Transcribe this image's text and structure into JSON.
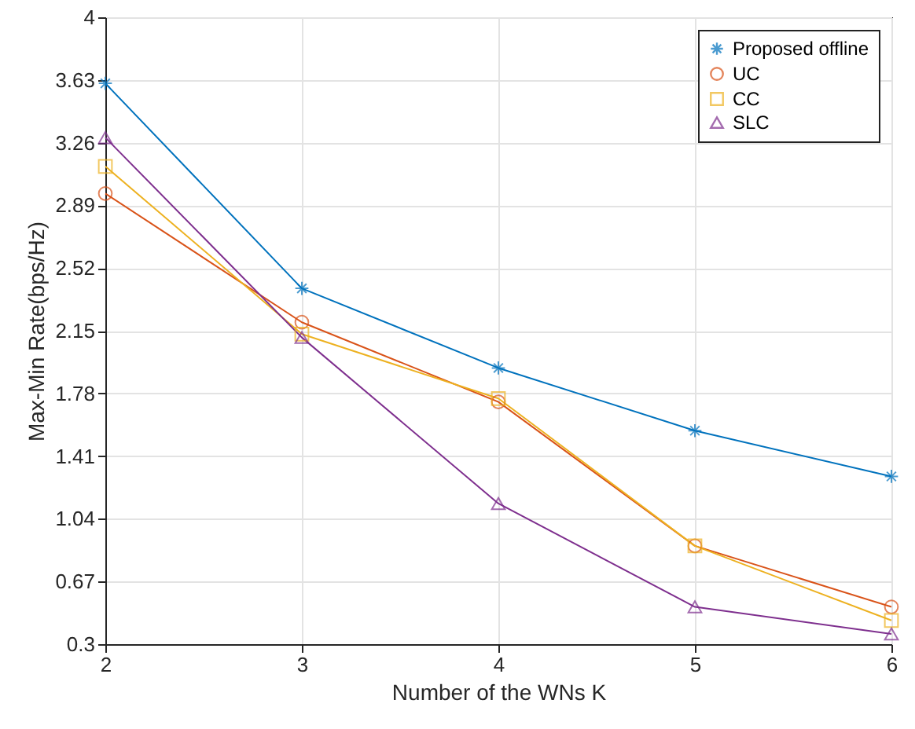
{
  "chart_data": {
    "type": "line",
    "xlabel": "Number of the WNs K",
    "ylabel": "Max-Min Rate(bps/Hz)",
    "x": [
      2,
      3,
      4,
      5,
      6
    ],
    "xlim": [
      2,
      6
    ],
    "xticks": [
      2,
      3,
      4,
      5,
      6
    ],
    "ylim": [
      0.3,
      4
    ],
    "yticks": [
      0.3,
      0.67,
      1.04,
      1.41,
      1.78,
      2.15,
      2.52,
      2.89,
      3.26,
      3.63,
      4
    ],
    "grid": true,
    "legend": "top right",
    "line_style": "solid",
    "series": [
      {
        "name": "Proposed offline",
        "color": "#0072bd",
        "marker": "cross",
        "values": [
          3.61,
          2.4,
          1.93,
          1.56,
          1.29
        ]
      },
      {
        "name": "UC",
        "color": "#d95319",
        "marker": "circle",
        "values": [
          2.96,
          2.2,
          1.73,
          0.88,
          0.52
        ]
      },
      {
        "name": "CC",
        "color": "#edb120",
        "marker": "square",
        "values": [
          3.12,
          2.13,
          1.75,
          0.88,
          0.44
        ]
      },
      {
        "name": "SLC",
        "color": "#7e2f8e",
        "marker": "triangle",
        "values": [
          3.29,
          2.11,
          1.13,
          0.52,
          0.36
        ]
      }
    ]
  }
}
